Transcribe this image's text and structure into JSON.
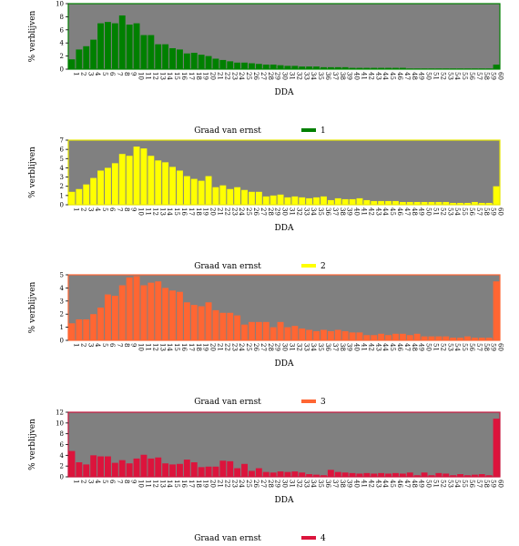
{
  "colors": {
    "plot_bg": "#808080",
    "series": [
      "#008000",
      "#ffff00",
      "#ff6633",
      "#dc143c"
    ],
    "frames": [
      "#008000",
      "#e6e600",
      "#ff6633",
      "#c8143c"
    ]
  },
  "chart_data": [
    {
      "type": "bar",
      "xlabel": "DDA",
      "ylabel": "% verblijven",
      "ylim": [
        0,
        10
      ],
      "yticks": [
        0,
        2,
        4,
        6,
        8,
        10
      ],
      "legend": {
        "title": "Graad van ernst",
        "label": "1"
      },
      "categories": [
        "1",
        "2",
        "3",
        "4",
        "5",
        "6",
        "7",
        "8",
        "9",
        "10",
        "11",
        "12",
        "13",
        "14",
        "15",
        "16",
        "17",
        "18",
        "19",
        "20",
        "21",
        "22",
        "23",
        "24",
        "25",
        "26",
        "27",
        "28",
        "29",
        "30",
        "31",
        "32",
        "33",
        "34",
        "35",
        "36",
        "37",
        "38",
        "39",
        "40",
        "41",
        "42",
        "43",
        "44",
        "45",
        "46",
        "47",
        "48",
        "49",
        "50",
        "51",
        "52",
        "53",
        "54",
        "55",
        "56",
        "57",
        "58",
        "59",
        "60"
      ],
      "values": [
        1.5,
        3.0,
        3.5,
        4.5,
        7.0,
        7.2,
        7.0,
        8.2,
        6.8,
        7.0,
        5.2,
        5.2,
        3.8,
        3.8,
        3.2,
        3.0,
        2.4,
        2.5,
        2.2,
        2.0,
        1.6,
        1.4,
        1.2,
        1.0,
        1.0,
        0.9,
        0.8,
        0.7,
        0.7,
        0.6,
        0.5,
        0.5,
        0.4,
        0.4,
        0.4,
        0.3,
        0.3,
        0.3,
        0.3,
        0.2,
        0.2,
        0.2,
        0.2,
        0.2,
        0.2,
        0.2,
        0.2,
        0.1,
        0.1,
        0.1,
        0.1,
        0.1,
        0.1,
        0.1,
        0.1,
        0.1,
        0.1,
        0.1,
        0.1,
        0.7
      ]
    },
    {
      "type": "bar",
      "xlabel": "DDA",
      "ylabel": "% verblijven",
      "ylim": [
        0,
        7
      ],
      "yticks": [
        0,
        1,
        2,
        3,
        4,
        5,
        6,
        7
      ],
      "legend": {
        "title": "Graad van ernst",
        "label": "2"
      },
      "categories": [
        "1",
        "2",
        "3",
        "4",
        "5",
        "6",
        "7",
        "8",
        "9",
        "10",
        "11",
        "12",
        "13",
        "14",
        "15",
        "16",
        "17",
        "18",
        "19",
        "20",
        "21",
        "22",
        "23",
        "24",
        "25",
        "26",
        "27",
        "28",
        "29",
        "30",
        "31",
        "32",
        "33",
        "34",
        "35",
        "36",
        "37",
        "38",
        "39",
        "40",
        "41",
        "42",
        "43",
        "44",
        "45",
        "46",
        "47",
        "48",
        "49",
        "50",
        "51",
        "52",
        "53",
        "54",
        "55",
        "56",
        "57",
        "58",
        "59",
        "60"
      ],
      "values": [
        1.4,
        1.7,
        2.2,
        2.9,
        3.7,
        4.0,
        4.5,
        5.5,
        5.3,
        6.3,
        6.1,
        5.3,
        4.8,
        4.6,
        4.1,
        3.7,
        3.1,
        2.8,
        2.6,
        3.1,
        1.9,
        2.1,
        1.7,
        1.9,
        1.6,
        1.4,
        1.4,
        0.9,
        1.0,
        1.1,
        0.8,
        0.9,
        0.8,
        0.7,
        0.8,
        0.9,
        0.5,
        0.7,
        0.6,
        0.6,
        0.7,
        0.5,
        0.4,
        0.4,
        0.4,
        0.4,
        0.3,
        0.3,
        0.3,
        0.3,
        0.3,
        0.3,
        0.3,
        0.2,
        0.2,
        0.2,
        0.3,
        0.2,
        0.2,
        2.0
      ]
    },
    {
      "type": "bar",
      "xlabel": "DDA",
      "ylabel": "% verblijven",
      "ylim": [
        0,
        5
      ],
      "yticks": [
        0,
        1,
        2,
        3,
        4,
        5
      ],
      "legend": {
        "title": "Graad van ernst",
        "label": "3"
      },
      "categories": [
        "1",
        "2",
        "3",
        "4",
        "5",
        "6",
        "7",
        "8",
        "9",
        "10",
        "11",
        "12",
        "13",
        "14",
        "15",
        "16",
        "17",
        "18",
        "19",
        "20",
        "21",
        "22",
        "23",
        "24",
        "25",
        "26",
        "27",
        "28",
        "29",
        "30",
        "31",
        "32",
        "33",
        "34",
        "35",
        "36",
        "37",
        "38",
        "39",
        "40",
        "41",
        "42",
        "43",
        "44",
        "45",
        "46",
        "47",
        "48",
        "49",
        "50",
        "51",
        "52",
        "53",
        "54",
        "55",
        "56",
        "57",
        "58",
        "59",
        "60"
      ],
      "values": [
        1.3,
        1.6,
        1.6,
        2.0,
        2.5,
        3.5,
        3.4,
        4.2,
        4.8,
        4.9,
        4.2,
        4.4,
        4.5,
        4.0,
        3.8,
        3.7,
        2.9,
        2.7,
        2.6,
        2.9,
        2.3,
        2.1,
        2.1,
        1.9,
        1.2,
        1.4,
        1.4,
        1.4,
        1.0,
        1.4,
        1.0,
        1.1,
        0.9,
        0.8,
        0.7,
        0.8,
        0.7,
        0.8,
        0.7,
        0.6,
        0.6,
        0.4,
        0.4,
        0.5,
        0.4,
        0.5,
        0.5,
        0.4,
        0.5,
        0.3,
        0.3,
        0.3,
        0.3,
        0.2,
        0.2,
        0.3,
        0.2,
        0.2,
        0.2,
        4.5
      ]
    },
    {
      "type": "bar",
      "xlabel": "DDA",
      "ylabel": "% verblijven",
      "ylim": [
        0,
        12
      ],
      "yticks": [
        0,
        2,
        4,
        6,
        8,
        10,
        12
      ],
      "legend": {
        "title": "Graad van ernst",
        "label": "4"
      },
      "categories": [
        "1",
        "2",
        "3",
        "4",
        "5",
        "6",
        "7",
        "8",
        "9",
        "10",
        "11",
        "12",
        "13",
        "14",
        "15",
        "16",
        "17",
        "18",
        "19",
        "20",
        "21",
        "22",
        "23",
        "24",
        "25",
        "26",
        "27",
        "28",
        "29",
        "30",
        "31",
        "32",
        "33",
        "34",
        "35",
        "36",
        "37",
        "38",
        "39",
        "40",
        "41",
        "42",
        "43",
        "44",
        "45",
        "46",
        "47",
        "48",
        "49",
        "50",
        "51",
        "52",
        "53",
        "54",
        "55",
        "56",
        "57",
        "58",
        "59",
        "60"
      ],
      "values": [
        4.8,
        2.7,
        2.3,
        4.0,
        3.8,
        3.8,
        2.6,
        3.1,
        2.5,
        3.4,
        4.1,
        3.4,
        3.6,
        2.5,
        2.3,
        2.4,
        3.2,
        2.7,
        1.8,
        1.9,
        1.9,
        3.0,
        2.9,
        1.6,
        2.4,
        1.1,
        1.6,
        0.9,
        0.8,
        1.0,
        0.9,
        1.0,
        0.8,
        0.5,
        0.4,
        0.3,
        1.3,
        0.9,
        0.8,
        0.7,
        0.6,
        0.7,
        0.6,
        0.7,
        0.6,
        0.7,
        0.6,
        0.8,
        0.3,
        0.8,
        0.3,
        0.7,
        0.6,
        0.3,
        0.5,
        0.3,
        0.4,
        0.5,
        0.3,
        10.8
      ]
    }
  ]
}
